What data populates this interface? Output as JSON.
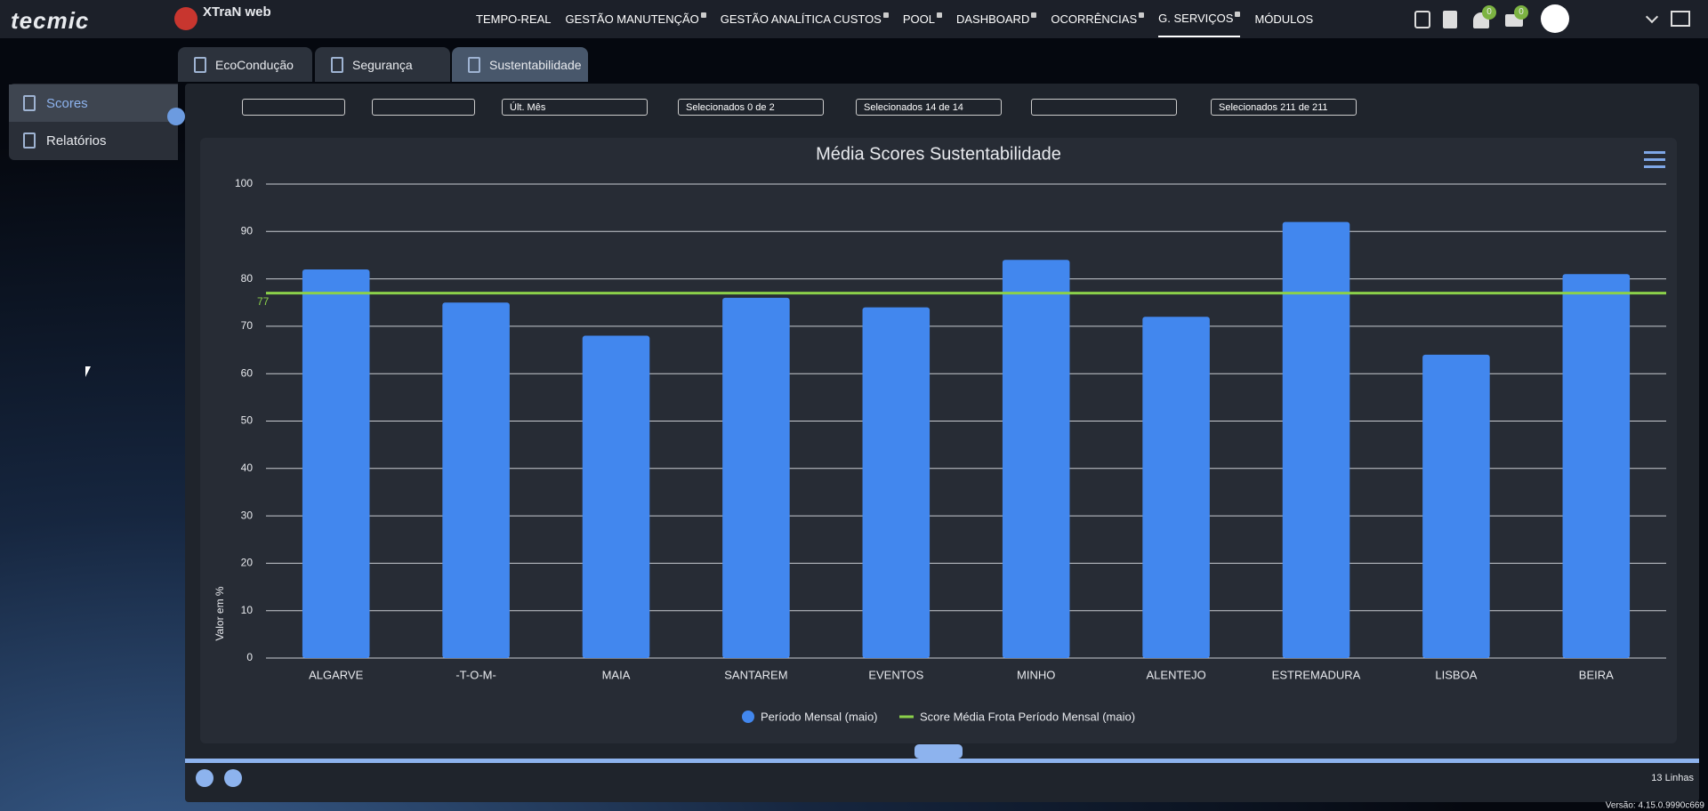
{
  "brand": "tecmic",
  "product": "XTraN web",
  "menu": [
    "TEMPO-REAL",
    "GESTÃO MANUTENÇÃO",
    "GESTÃO ANALÍTICA CUSTOS",
    "POOL",
    "DASHBOARD",
    "OCORRÊNCIAS",
    "G. SERVIÇOS",
    "MÓDULOS"
  ],
  "badges": {
    "notifications": "0",
    "messages": "0"
  },
  "tabs": [
    "EcoCondução",
    "Segurança",
    "Sustentabilidade"
  ],
  "sidebar": [
    "Scores",
    "Relatórios"
  ],
  "filters": {
    "period": "Últ. Mês",
    "groups": "Selecionados 0 de 2",
    "drivers": "Selecionados 14 de 14",
    "vehicles": "Selecionados 211 de 211"
  },
  "footer": {
    "rows": "13 Linhas",
    "version": "Versão: 4.15.0.9990c669"
  },
  "chart_data": {
    "type": "bar",
    "title": "Média Scores Sustentabilidade",
    "y_label": "Valor em %",
    "categories": [
      "ALGARVE",
      "-T-O-M-",
      "MAIA",
      "SANTAREM",
      "EVENTOS",
      "MINHO",
      "ALENTEJO",
      "ESTREMADURA",
      "LISBOA",
      "BEIRA"
    ],
    "series": [
      {
        "name": "Período Mensal (maio)",
        "color": "#4287ee",
        "values": [
          82,
          75,
          68,
          76,
          74,
          84,
          72,
          92,
          64,
          81
        ]
      }
    ],
    "reference_line": {
      "name": "Score Média Frota Período Mensal (maio)",
      "color": "#8bd14a",
      "value": 77
    },
    "ylim": [
      0,
      100
    ],
    "yticks": [
      0,
      10,
      20,
      30,
      40,
      50,
      60,
      70,
      80,
      90,
      100
    ],
    "grid": true,
    "legend": "bottom"
  }
}
